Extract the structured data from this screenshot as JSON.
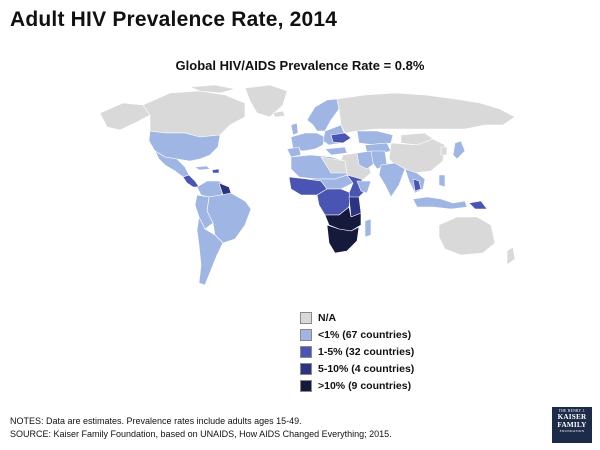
{
  "title": "Adult HIV Prevalence Rate, 2014",
  "subtitle": "Global HIV/AIDS Prevalence Rate = 0.8%",
  "colors": {
    "na": "#d9d9d9",
    "lt1": "#9fb5e4",
    "1to5": "#4a55b3",
    "5to10": "#2b3383",
    "gt10": "#151a3d",
    "border": "#ffffff"
  },
  "legend": [
    {
      "key": "na",
      "label": "N/A"
    },
    {
      "key": "lt1",
      "label": "<1% (67 countries)"
    },
    {
      "key": "1to5",
      "label": "1-5% (32 countries)"
    },
    {
      "key": "5to10",
      "label": "5-10% (4 countries)"
    },
    {
      "key": "gt10",
      "label": ">10% (9 countries)"
    }
  ],
  "notes": {
    "line1": "NOTES: Data are estimates. Prevalence rates include adults ages 15-49.",
    "line2": "SOURCE: Kaiser Family Foundation, based on UNAIDS, How AIDS Changed Everything; 2015."
  },
  "logo": {
    "top": "THE HENRY J.",
    "line1": "KAISER",
    "line2": "FAMILY",
    "bottom": "FOUNDATION"
  }
}
